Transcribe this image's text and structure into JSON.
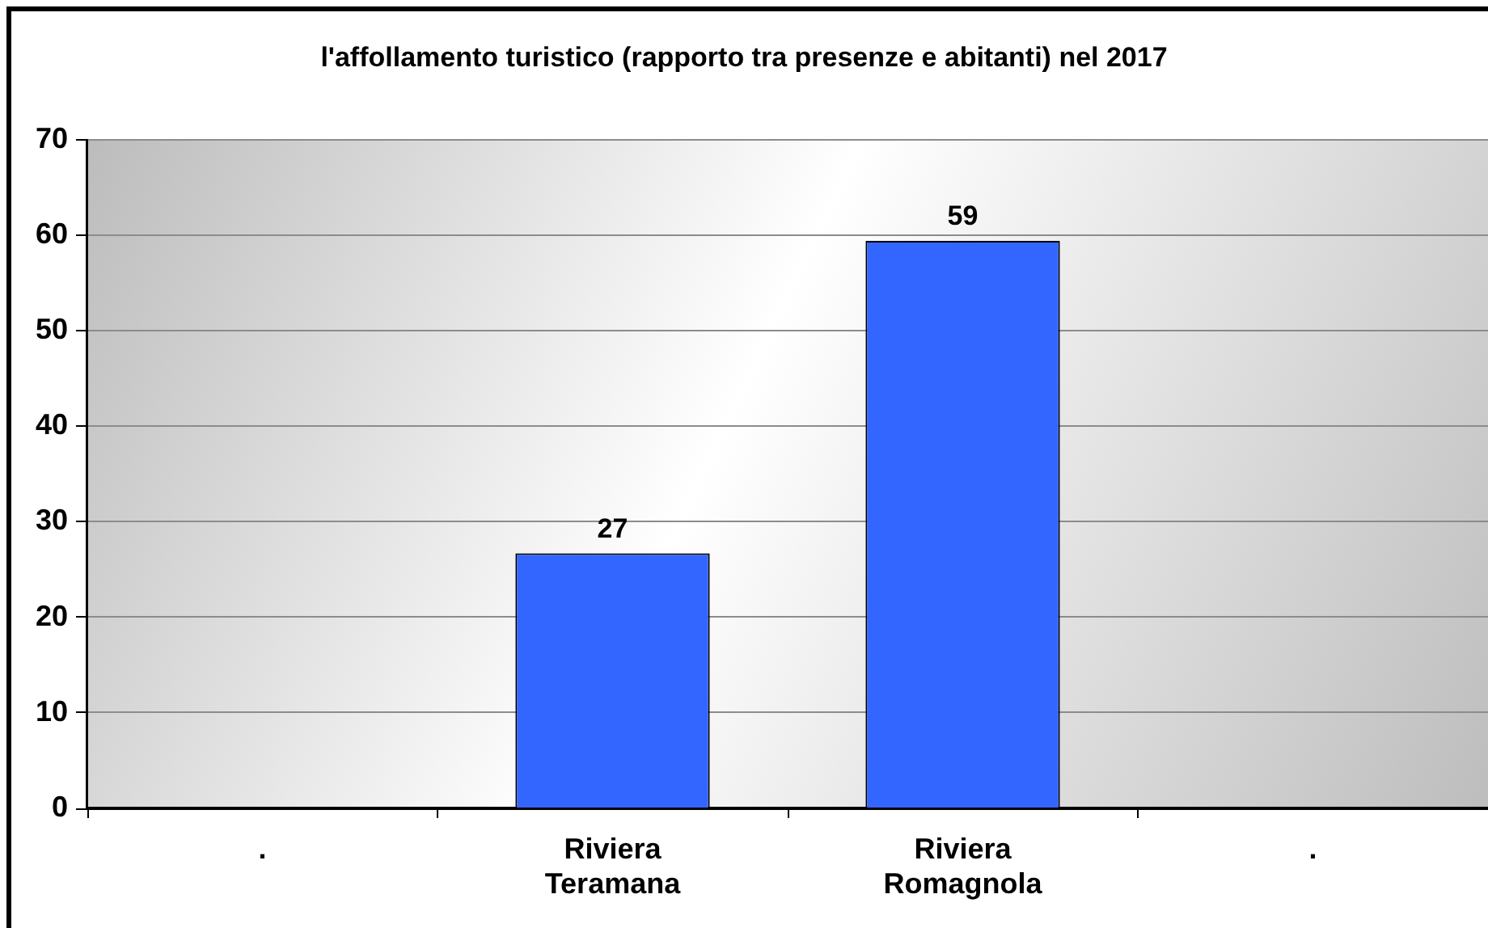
{
  "chart_data": {
    "type": "bar",
    "title": "l'affollamento turistico (rapporto tra presenze e abitanti) nel 2017",
    "categories": [
      ".",
      "Riviera Teramana",
      "Riviera Romagnola",
      "."
    ],
    "values": [
      null,
      26.7,
      59.4,
      null
    ],
    "color": "#3366ff",
    "value_labels": [
      null,
      "27",
      "59",
      null
    ],
    "ylim": [
      0,
      70
    ],
    "yticks": [
      0,
      10,
      20,
      30,
      40,
      50,
      60,
      70
    ],
    "grid": "y"
  }
}
